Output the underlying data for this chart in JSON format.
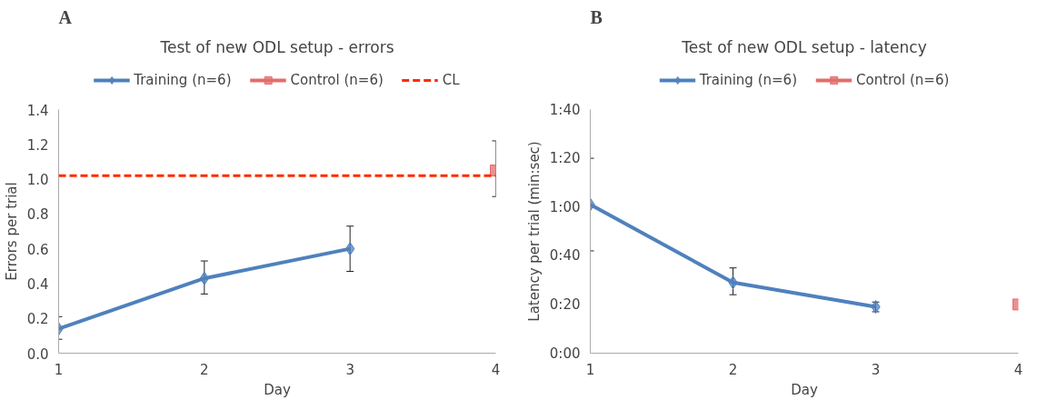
{
  "chart_data": [
    {
      "type": "line",
      "title": "Test of new ODL setup - errors",
      "xlabel": "Day",
      "ylabel": "Errors per trial",
      "annotations": [
        "A"
      ],
      "xlim": [
        1,
        4
      ],
      "xticks": [
        1,
        2,
        3,
        4
      ],
      "ylim": [
        0,
        1.4
      ],
      "yticks": [
        {
          "value": 0,
          "label": "0.0"
        },
        0.2,
        0.4,
        0.6,
        0.8,
        {
          "value": 1,
          "label": "1.0"
        },
        1.2,
        1.4
      ],
      "grid": false,
      "legend": "top",
      "series": [
        {
          "name": "Training (n=6)",
          "color": "#4f81bd",
          "marker": "diamond",
          "x": [
            1,
            2,
            3
          ],
          "values": [
            0.14,
            0.43,
            0.6
          ],
          "errors": [
            [
              0.08,
              0.21
            ],
            [
              0.34,
              0.53
            ],
            [
              0.47,
              0.73
            ]
          ]
        },
        {
          "name": "Control (n=6)",
          "color": "#e46c6c",
          "marker": "square",
          "x": [
            4
          ],
          "values": [
            1.05
          ],
          "errors": [
            [
              0.9,
              1.22
            ]
          ]
        }
      ],
      "ref_lines": [
        {
          "axis": "y",
          "value": 1.02,
          "label": "CL",
          "color": "#ff2a00",
          "line_style": "dashed"
        }
      ]
    },
    {
      "type": "line",
      "title": "Test of new ODL setup - latency",
      "xlabel": "Day",
      "ylabel": "Latency per trial (min:sec)",
      "annotations": [
        "B"
      ],
      "xlim": [
        1,
        4
      ],
      "xticks": [
        1,
        2,
        3,
        4
      ],
      "ylim": [
        0,
        100
      ],
      "yticks": [
        {
          "value": 0,
          "label": "0:00"
        },
        {
          "value": 20,
          "label": "0:20"
        },
        {
          "value": 40,
          "label": "0:40"
        },
        {
          "value": 60,
          "label": "1:00"
        },
        {
          "value": 80,
          "label": "1:20"
        },
        {
          "value": 100,
          "label": "1:40"
        }
      ],
      "grid": false,
      "legend": "top",
      "series": [
        {
          "name": "Training (n=6)",
          "color": "#4f81bd",
          "marker": "diamond",
          "x": [
            1,
            2,
            3
          ],
          "values": [
            61,
            29,
            19
          ],
          "errors": [
            [
              42,
              80
            ],
            [
              24,
              35
            ],
            [
              17,
              21
            ]
          ]
        },
        {
          "name": "Control (n=6)",
          "color": "#e46c6c",
          "marker": "square",
          "x": [
            4
          ],
          "values": [
            20
          ],
          "errors": [
            null
          ]
        }
      ]
    }
  ]
}
